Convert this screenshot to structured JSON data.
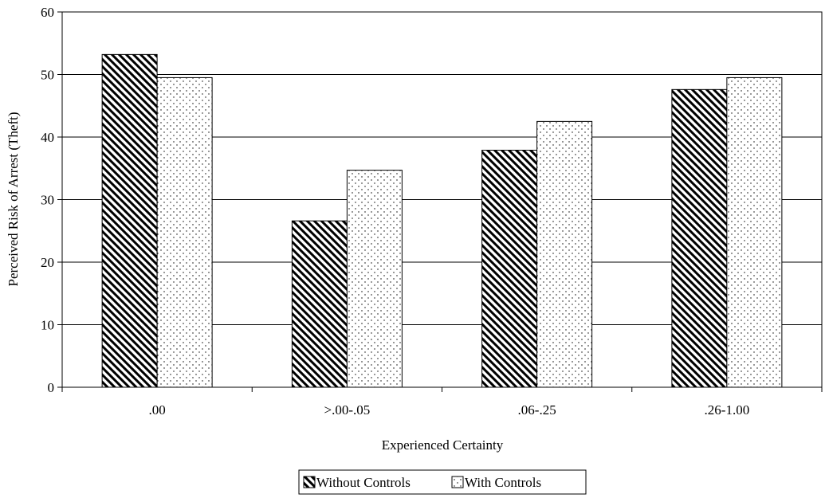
{
  "chart_data": {
    "type": "bar",
    "title": "",
    "xlabel": "Experienced Certainty",
    "ylabel": "Perceived Risk of Arrest (Theft)",
    "categories": [
      ".00",
      ">.00-.05",
      ".06-.25",
      ".26-1.00"
    ],
    "series": [
      {
        "name": "Without Controls",
        "values": [
          53.2,
          26.6,
          37.9,
          47.6
        ],
        "pattern": "diagonal-hatch"
      },
      {
        "name": "With Controls",
        "values": [
          49.5,
          34.7,
          42.5,
          49.5
        ],
        "pattern": "dots"
      }
    ],
    "ylim": [
      0,
      60
    ],
    "yticks": [
      "0",
      "10",
      "20",
      "30",
      "40",
      "50",
      "60"
    ],
    "grid": true,
    "legend_position": "bottom-center"
  }
}
